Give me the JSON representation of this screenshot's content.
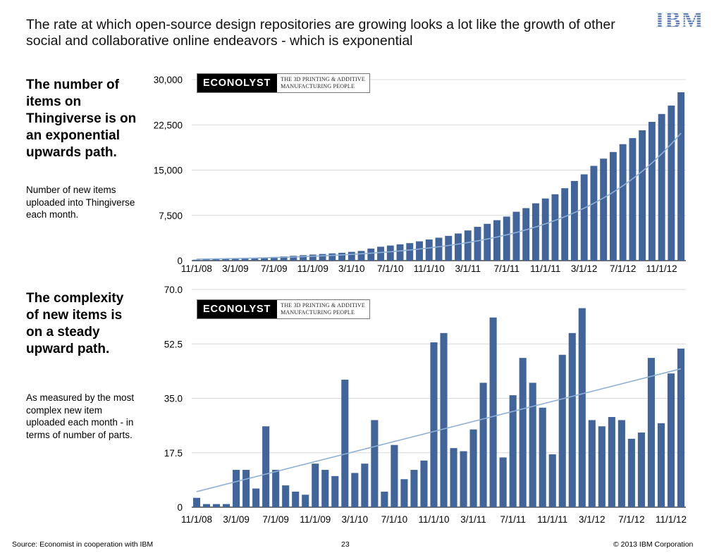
{
  "headline": "The rate at which open-source design repositories are growing looks a lot like the growth of other social and collaborative online endeavors - which is exponential",
  "logo": {
    "icon": "ibm-logo-icon",
    "text": "IBM",
    "color": "#4a6fb5"
  },
  "panels": [
    {
      "title": "The number of items on Thingiverse is on an exponential upwards path.",
      "description": "Number of new items uploaded into Thingiverse each month."
    },
    {
      "title": "The complexity of new items is on a steady upward path.",
      "description": "As measured by the most complex new item uploaded each month - in terms of number of parts."
    }
  ],
  "econolyst": {
    "brand": "ECONOLYST",
    "tagline_1": "THE 3D PRINTING & ADDITIVE",
    "tagline_2": "MANUFACTURING PEOPLE"
  },
  "colors": {
    "bar": "#41659a",
    "trend": "#8fb0d6",
    "grid": "#d9d9d9"
  },
  "chart_data": [
    {
      "type": "bar",
      "title": "",
      "xlabel": "",
      "ylabel": "",
      "ylim": [
        0,
        30000
      ],
      "y_ticks": [
        "0",
        "7,500",
        "15,000",
        "22,500",
        "30,000"
      ],
      "y_tick_values": [
        0,
        7500,
        15000,
        22500,
        30000
      ],
      "x_tick_labels": [
        "11/1/08",
        "3/1/09",
        "7/1/09",
        "11/1/09",
        "3/1/10",
        "7/1/10",
        "11/1/10",
        "3/1/11",
        "7/1/11",
        "11/1/11",
        "3/1/12",
        "7/1/12",
        "11/1/12"
      ],
      "x_tick_every": 4,
      "grid": true,
      "trendline": "exponential",
      "trend_start": 250,
      "trend_growth": 1.0928,
      "values": [
        150,
        200,
        250,
        300,
        350,
        400,
        450,
        500,
        600,
        700,
        800,
        900,
        1000,
        1100,
        1200,
        1300,
        1450,
        1600,
        2000,
        2300,
        2500,
        2700,
        2900,
        3200,
        3500,
        3800,
        4100,
        4500,
        5000,
        5600,
        6100,
        6700,
        7300,
        8100,
        8700,
        9500,
        10300,
        11000,
        12000,
        13200,
        14300,
        15700,
        16900,
        18000,
        19300,
        20300,
        21600,
        23000,
        24300,
        25700,
        27900
      ]
    },
    {
      "type": "bar",
      "title": "",
      "xlabel": "",
      "ylabel": "",
      "ylim": [
        0,
        70
      ],
      "y_ticks": [
        "0",
        "17.5",
        "35.0",
        "52.5",
        "70.0"
      ],
      "y_tick_values": [
        0,
        17.5,
        35,
        52.5,
        70
      ],
      "x_tick_labels": [
        "11/1/08",
        "3/1/09",
        "7/1/09",
        "11/1/09",
        "3/1/10",
        "7/1/10",
        "11/1/10",
        "3/1/11",
        "7/1/11",
        "11/1/11",
        "3/1/12",
        "7/1/12",
        "11/1/12"
      ],
      "x_tick_every": 4,
      "grid": true,
      "trendline": "linear",
      "trend_start": 5,
      "trend_end": 44.5,
      "values": [
        3,
        1,
        1,
        1,
        12,
        12,
        6,
        26,
        12,
        7,
        5,
        4,
        14,
        12,
        10,
        41,
        11,
        14,
        28,
        5,
        20,
        9,
        12,
        15,
        53,
        56,
        19,
        18,
        25,
        40,
        61,
        16,
        36,
        48,
        40,
        32,
        17,
        49,
        56,
        64,
        28,
        26,
        29,
        28,
        22,
        24,
        48,
        27,
        43,
        51
      ]
    }
  ],
  "footer": {
    "source": "Source: Economist in cooperation with IBM",
    "page": "23",
    "copyright": "© 2013 IBM Corporation"
  }
}
